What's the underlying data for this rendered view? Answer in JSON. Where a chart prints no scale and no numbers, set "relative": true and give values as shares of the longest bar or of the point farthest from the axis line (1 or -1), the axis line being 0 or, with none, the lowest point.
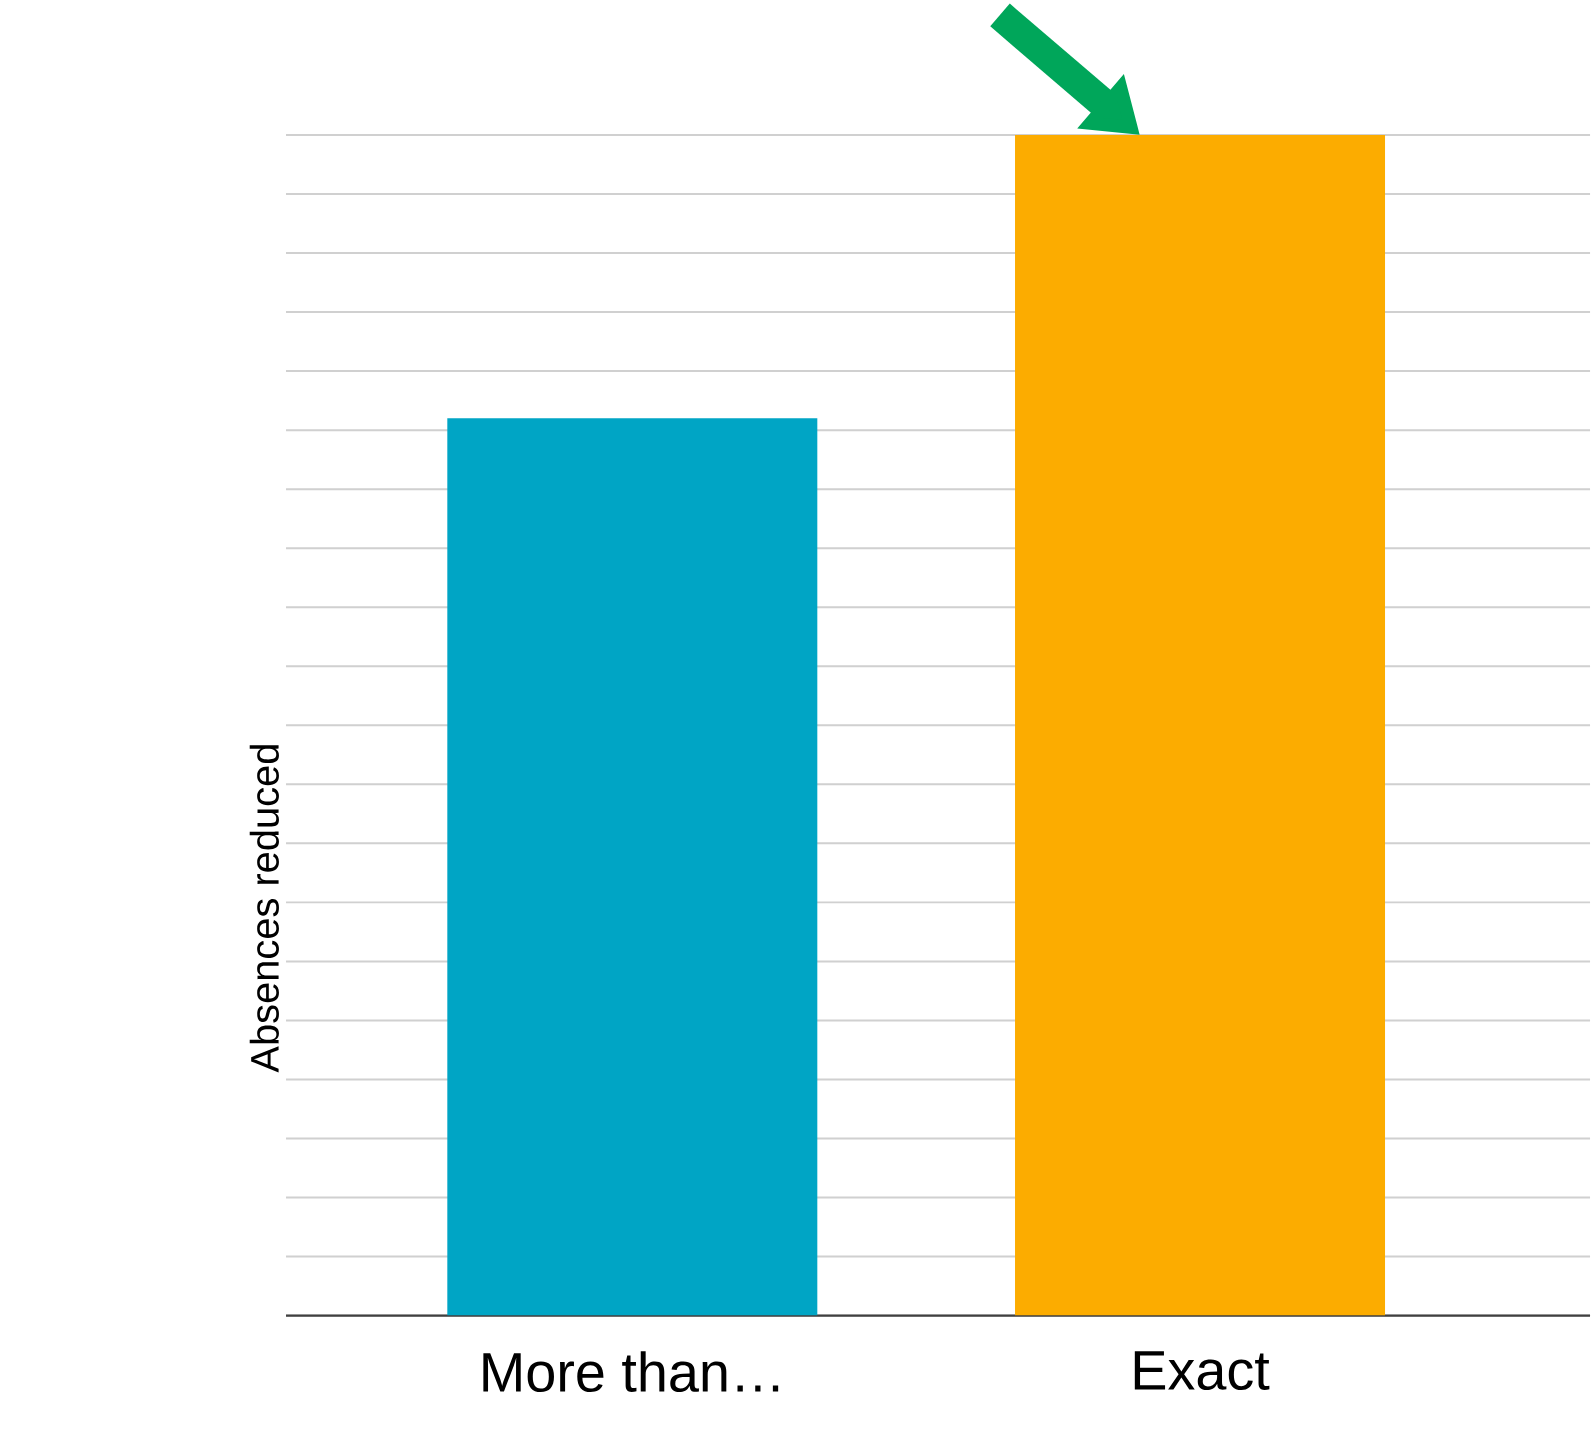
{
  "chart_data": {
    "type": "bar",
    "ylabel": "Absences reduced",
    "relative": true,
    "grid": "y",
    "categories": [
      "More than…",
      "Exact"
    ],
    "values": [
      0.76,
      1
    ],
    "colors": [
      "#00a5c5",
      "#fcac00"
    ]
  }
}
